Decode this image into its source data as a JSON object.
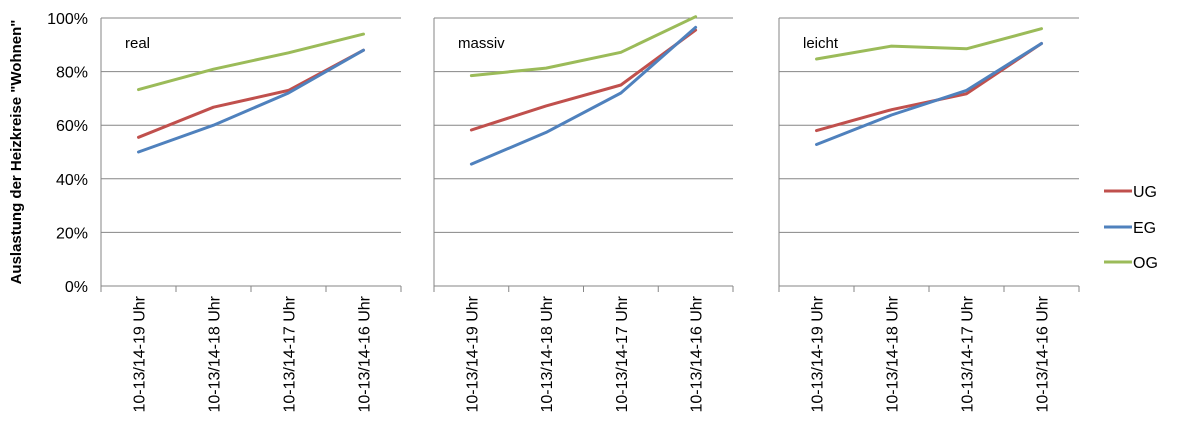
{
  "chart_data": {
    "type": "line",
    "ylabel": "Auslastung der Heizkreise \"Wohnen\"",
    "yticks": [
      "0%",
      "20%",
      "40%",
      "60%",
      "80%",
      "100%"
    ],
    "ylim": [
      0,
      100
    ],
    "grid": true,
    "legend_position": "right",
    "categories": [
      "10-13/14-19 Uhr",
      "10-13/14-18 Uhr",
      "10-13/14-17 Uhr",
      "10-13/14-16 Uhr"
    ],
    "series_names": [
      "UG",
      "EG",
      "OG"
    ],
    "colors": {
      "UG": "#c0504d",
      "EG": "#4f81bd",
      "OG": "#9bbb59"
    },
    "panels": [
      {
        "label": "real",
        "series": [
          {
            "name": "UG",
            "values": [
              55.5,
              66.7,
              73.0,
              88.0
            ]
          },
          {
            "name": "EG",
            "values": [
              50.0,
              60.0,
              72.0,
              88.0
            ]
          },
          {
            "name": "OG",
            "values": [
              73.3,
              80.9,
              87.0,
              94.0
            ]
          }
        ]
      },
      {
        "label": "massiv",
        "series": [
          {
            "name": "UG",
            "values": [
              58.2,
              67.2,
              75.0,
              95.5
            ]
          },
          {
            "name": "EG",
            "values": [
              45.5,
              57.3,
              72.0,
              96.5
            ]
          },
          {
            "name": "OG",
            "values": [
              78.5,
              81.3,
              87.2,
              100.5
            ]
          }
        ]
      },
      {
        "label": "leicht",
        "series": [
          {
            "name": "UG",
            "values": [
              58.0,
              65.8,
              71.7,
              90.5
            ]
          },
          {
            "name": "EG",
            "values": [
              52.8,
              63.8,
              73.0,
              90.5
            ]
          },
          {
            "name": "OG",
            "values": [
              84.7,
              89.5,
              88.5,
              96.0
            ]
          }
        ]
      }
    ]
  }
}
